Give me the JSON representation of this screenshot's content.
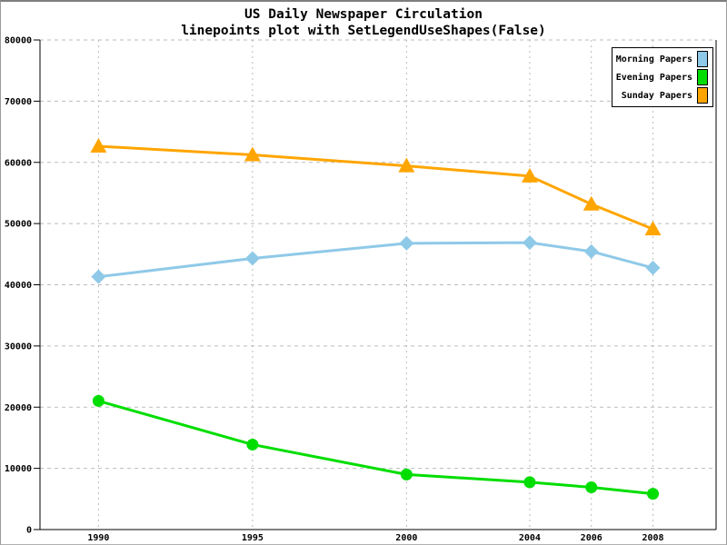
{
  "title": "US Daily Newspaper Circulation",
  "subtitle": "linepoints plot with SetLegendUseShapes(False)",
  "legend": {
    "position": "top-right",
    "items": [
      {
        "label": "Morning Papers",
        "color": "#8fc9e8"
      },
      {
        "label": "Evening Papers",
        "color": "#00dd00"
      },
      {
        "label": "Sunday Papers",
        "color": "#ffa500"
      }
    ]
  },
  "chart_data": {
    "type": "line",
    "subtype": "linepoints",
    "title": "US Daily Newspaper Circulation",
    "subtitle": "linepoints plot with SetLegendUseShapes(False)",
    "xlabel": "",
    "ylabel": "",
    "x": [
      1990,
      1995,
      2000,
      2004,
      2006,
      2008
    ],
    "series": [
      {
        "name": "Morning Papers",
        "color": "#8fc9e8",
        "marker": "diamond",
        "values": [
          41311,
          44310,
          46772,
          46887,
          45441,
          42757
        ]
      },
      {
        "name": "Evening Papers",
        "color": "#00dd00",
        "marker": "circle",
        "values": [
          21017,
          13883,
          9000,
          7738,
          6900,
          5840
        ]
      },
      {
        "name": "Sunday Papers",
        "color": "#ffa500",
        "marker": "triangle",
        "values": [
          62635,
          61229,
          59421,
          57754,
          53179,
          49115
        ]
      }
    ],
    "xlim": [
      1988.1,
      2010.05
    ],
    "ylim": [
      0,
      80000
    ],
    "x_ticks": [
      1990,
      1995,
      2000,
      2004,
      2006,
      2008
    ],
    "x_tick_labels": [
      "1990",
      "1995",
      "2000",
      "2004",
      "2006",
      "2008"
    ],
    "y_ticks": [
      0,
      10000,
      20000,
      30000,
      40000,
      50000,
      60000,
      70000,
      80000
    ],
    "y_tick_labels": [
      "0",
      "10000",
      "20000",
      "30000",
      "40000",
      "50000",
      "60000",
      "70000",
      "80000"
    ],
    "grid": true,
    "legend_position": "top-right"
  },
  "colors": {
    "grid": "#bbbbbb",
    "axis": "#000000",
    "tick_label": "#000000",
    "background": "#ffffff"
  }
}
